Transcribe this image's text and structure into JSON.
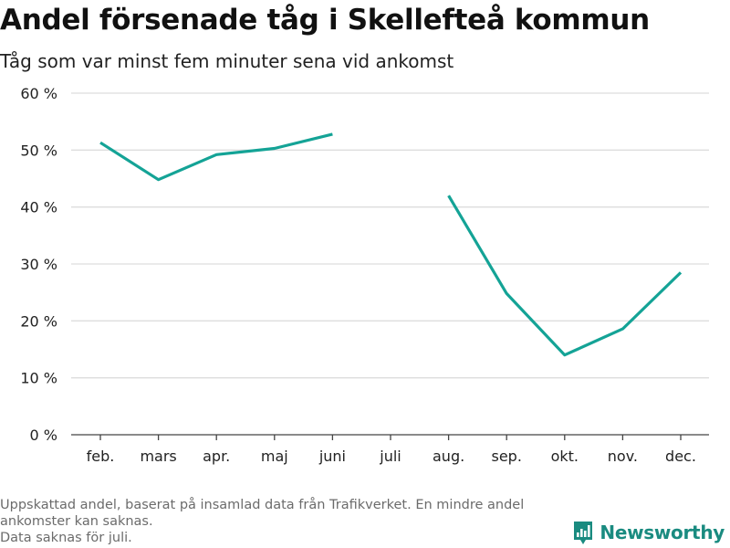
{
  "title": "Andel försenade tåg i Skellefteå kommun",
  "subtitle": "Tåg som var minst fem minuter sena vid ankomst",
  "colors": {
    "line": "#14a396",
    "grid": "#dddddd",
    "axis": "#444444",
    "brand": "#1a8b80"
  },
  "chart_data": {
    "type": "line",
    "categories": [
      "feb.",
      "mars",
      "apr.",
      "maj",
      "juni",
      "juli",
      "aug.",
      "sep.",
      "okt.",
      "nov.",
      "dec."
    ],
    "series": [
      {
        "name": "Andel försenade tåg",
        "values": [
          51.3,
          44.8,
          49.2,
          50.3,
          52.8,
          null,
          42.0,
          24.8,
          14.0,
          18.6,
          28.5
        ]
      }
    ],
    "ylim": [
      0,
      60
    ],
    "yticks": [
      0,
      10,
      20,
      30,
      40,
      50,
      60
    ],
    "ytick_labels": [
      "0 %",
      "10 %",
      "20 %",
      "30 %",
      "40 %",
      "50 %",
      "60 %"
    ],
    "xlabel": "",
    "ylabel": "",
    "grid": true
  },
  "footnote": {
    "line1": "Uppskattad andel, baserat på insamlad data från Trafikverket. En mindre andel ankomster kan saknas.",
    "line2": "Data saknas för juli."
  },
  "brand": {
    "name": "Newsworthy",
    "icon": "newsworthy-logo-icon"
  }
}
